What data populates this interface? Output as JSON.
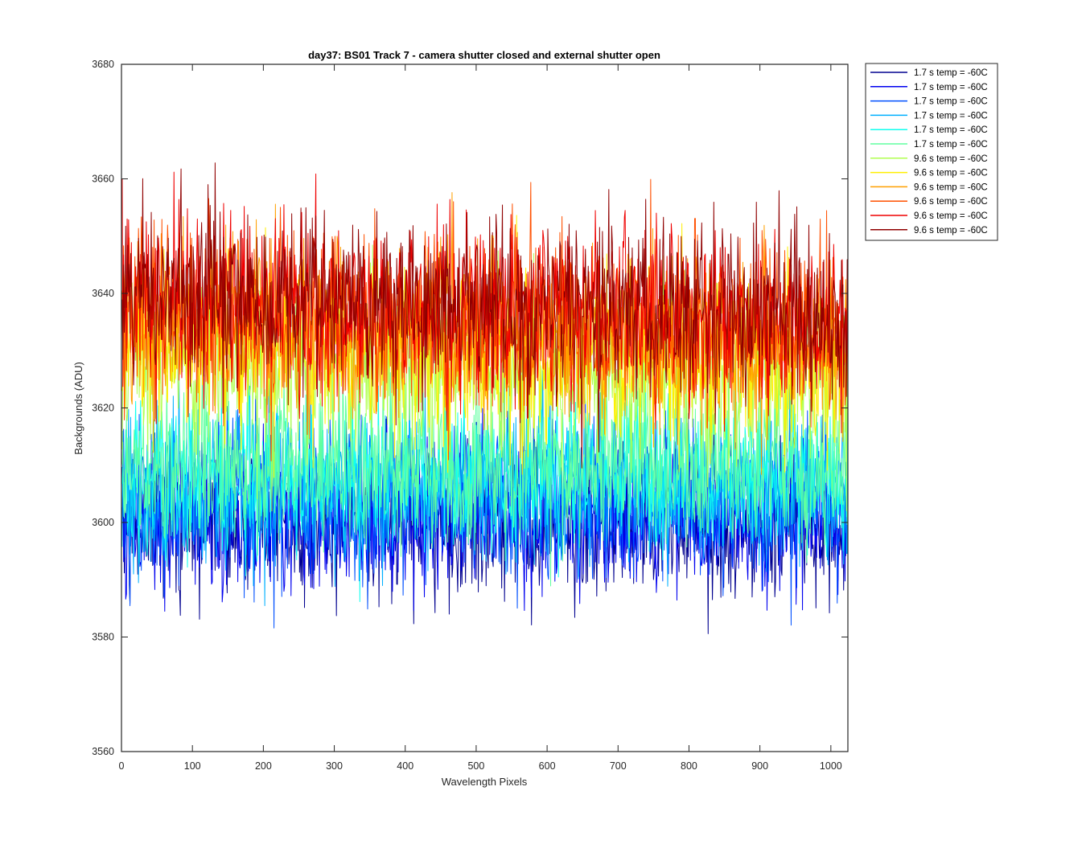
{
  "chart_data": {
    "type": "line",
    "title": "day37: BS01  Track 7 - camera shutter closed and external shutter open",
    "xlabel": "Wavelength Pixels",
    "ylabel": "Backgrounds (ADU)",
    "xlim": [
      0,
      1024
    ],
    "ylim": [
      3560,
      3680
    ],
    "xticks": [
      0,
      100,
      200,
      300,
      400,
      500,
      600,
      700,
      800,
      900,
      1000
    ],
    "yticks": [
      3560,
      3580,
      3600,
      3620,
      3640,
      3660,
      3680
    ],
    "grid": false,
    "legend_position": "outside-top-right",
    "x_range_note": "pixels 1 to 1024",
    "series": [
      {
        "name": "1.7 s temp = -60C",
        "color": "#00008F",
        "mean": 3600,
        "spread": 6.5
      },
      {
        "name": "1.7 s temp = -60C",
        "color": "#0000EF",
        "mean": 3601,
        "spread": 6.5
      },
      {
        "name": "1.7 s temp = -60C",
        "color": "#0050FF",
        "mean": 3604,
        "spread": 6.5
      },
      {
        "name": "1.7 s temp = -60C",
        "color": "#00B0FF",
        "mean": 3606,
        "spread": 6.5
      },
      {
        "name": "1.7 s temp = -60C",
        "color": "#10FFEF",
        "mean": 3608,
        "spread": 6.5
      },
      {
        "name": "1.7 s temp = -60C",
        "color": "#60FFA0",
        "mean": 3610,
        "spread": 6.5
      },
      {
        "name": "9.6 s temp = -60C",
        "color": "#B0FF50",
        "mean": 3629,
        "spread": 7.5
      },
      {
        "name": "9.6 s temp = -60C",
        "color": "#FFEF00",
        "mean": 3632,
        "spread": 7.5
      },
      {
        "name": "9.6 s temp = -60C",
        "color": "#FFA000",
        "mean": 3635,
        "spread": 7.5
      },
      {
        "name": "9.6 s temp = -60C",
        "color": "#FF5000",
        "mean": 3637,
        "spread": 7.5
      },
      {
        "name": "9.6 s temp = -60C",
        "color": "#EF0000",
        "mean": 3639,
        "spread": 7.5
      },
      {
        "name": "9.6 s temp = -60C",
        "color": "#900000",
        "mean": 3640,
        "spread": 7.5
      }
    ]
  }
}
